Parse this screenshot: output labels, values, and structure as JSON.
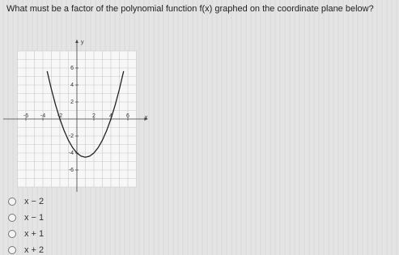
{
  "question": "What must be a factor of the polynomial function f(x) graphed on the coordinate plane below?",
  "graph": {
    "x_label": "x",
    "y_label": "y",
    "xlim": [
      -7,
      7
    ],
    "ylim": [
      -8,
      8
    ],
    "xticks": [
      -6,
      -4,
      -2,
      2,
      4,
      6
    ],
    "yticks": [
      6,
      4,
      2,
      -2,
      -4,
      -6
    ],
    "curve": {
      "x": [
        -3.5,
        -3,
        -2.5,
        -2,
        -1.5,
        -1,
        -0.5,
        0,
        0.5,
        1,
        1.5,
        2,
        2.5,
        3,
        3.5,
        4,
        4.5,
        5,
        5.5
      ],
      "y": [
        5.625,
        3.5,
        1.625,
        0,
        -1.375,
        -2.5,
        -3.375,
        -4,
        -4.375,
        -4.5,
        -4.375,
        -4,
        -3.375,
        -2.5,
        -1.375,
        0,
        1.625,
        3.5,
        5.625
      ]
    }
  },
  "options": [
    "x − 2",
    "x − 1",
    "x + 1",
    "x + 2"
  ]
}
